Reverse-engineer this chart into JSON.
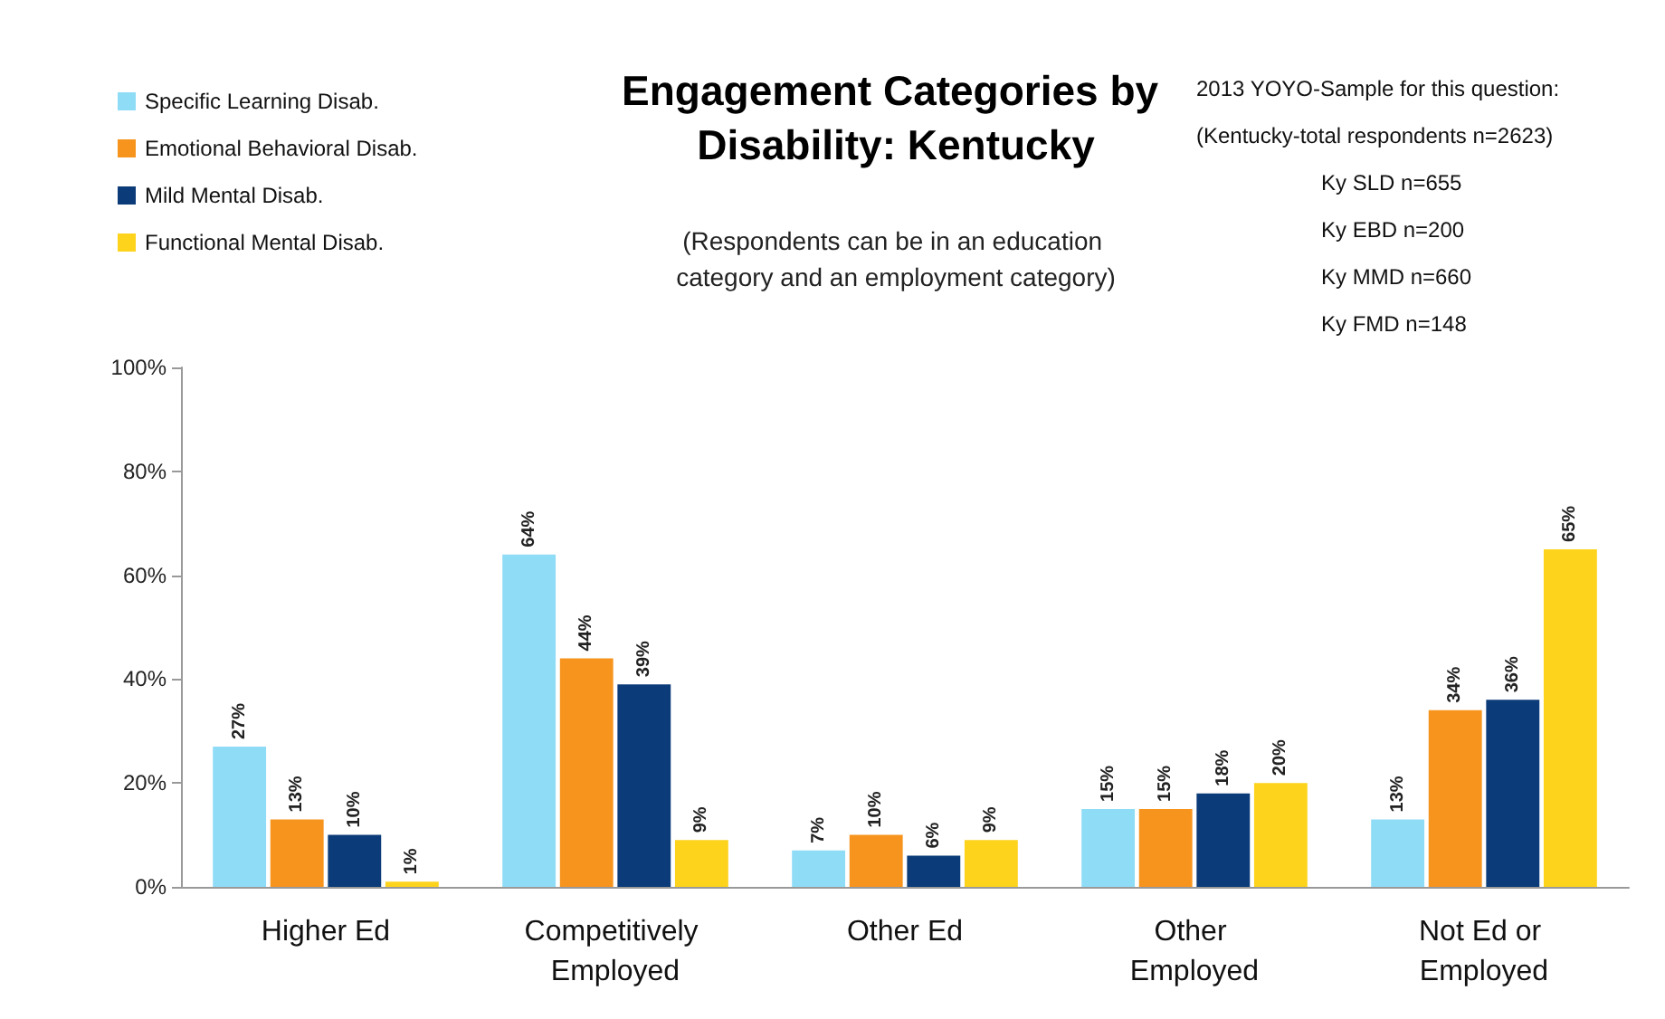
{
  "chart_data": {
    "type": "bar",
    "title": "Engagement Categories by Disability: Kentucky",
    "subtitle": "(Respondents can be in an education category and an employment category)",
    "annotations": [
      "2013 YOYO-Sample for this question:",
      "(Kentucky-total respondents n=2623)",
      "Ky SLD n=655",
      "Ky EBD n=200",
      "Ky MMD n=660",
      "Ky FMD n=148"
    ],
    "categories": [
      "Higher Ed",
      "Competitively Employed",
      "Other Ed",
      "Other Employed",
      "Not Ed or Employed"
    ],
    "series": [
      {
        "name": "Specific Learning Disab.",
        "color": "#8fdcf7",
        "values": [
          27,
          64,
          7,
          15,
          13
        ],
        "value_labels": [
          "27%",
          "64%",
          "7%",
          "15%",
          "13%"
        ]
      },
      {
        "name": "Emotional Behavioral Disab.",
        "color": "#f7941d",
        "values": [
          13,
          44,
          10,
          15,
          34
        ],
        "value_labels": [
          "13%",
          "44%",
          "10%",
          "15%",
          "34%"
        ]
      },
      {
        "name": "Mild Mental Disab.",
        "color": "#0b3b78",
        "values": [
          10,
          39,
          6,
          18,
          36
        ],
        "value_labels": [
          "10%",
          "39%",
          "6%",
          "18%",
          "36%"
        ]
      },
      {
        "name": "Functional Mental Disab.",
        "color": "#fdd31c",
        "values": [
          1,
          9,
          9,
          20,
          65
        ],
        "value_labels": [
          "1%",
          "9%",
          "9%",
          "20%",
          "65%"
        ]
      }
    ],
    "ylim": [
      0,
      100
    ],
    "yticks": [
      {
        "value": 0,
        "label": "0%"
      },
      {
        "value": 20,
        "label": "20%"
      },
      {
        "value": 40,
        "label": "40%"
      },
      {
        "value": 60,
        "label": "60%"
      },
      {
        "value": 80,
        "label": "80%"
      },
      {
        "value": 100,
        "label": "100%"
      }
    ],
    "legend": "top left"
  }
}
